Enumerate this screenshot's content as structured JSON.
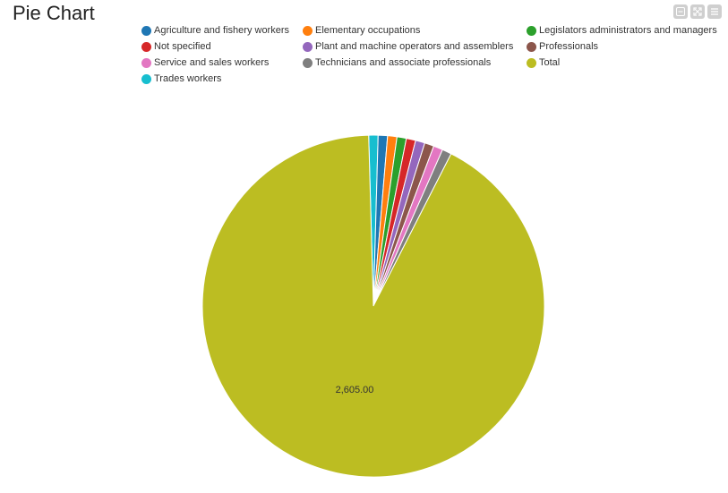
{
  "header": {
    "title": "Pie Chart"
  },
  "toolbar": {
    "icons": [
      "minimize-icon",
      "expand-icon",
      "menu-icon"
    ]
  },
  "chart_data": {
    "type": "pie",
    "title": "Pie Chart",
    "categories": [
      "Agriculture and fishery workers",
      "Elementary occupations",
      "Legislators administrators and managers",
      "Not specified",
      "Plant and machine operators and assemblers",
      "Professionals",
      "Service and sales workers",
      "Technicians and associate professionals",
      "Total",
      "Trades workers"
    ],
    "colors": [
      "#1f77b4",
      "#ff7f0e",
      "#2ca02c",
      "#d62728",
      "#9467bd",
      "#8c564b",
      "#e377c2",
      "#7f7f7f",
      "#bcbd22",
      "#17becf"
    ],
    "values": [
      25,
      25,
      25,
      25,
      25,
      25,
      25,
      25,
      2605,
      25
    ],
    "data_labels": [
      {
        "category": "Total",
        "text": "2,605.00"
      }
    ],
    "legend_position": "top"
  }
}
